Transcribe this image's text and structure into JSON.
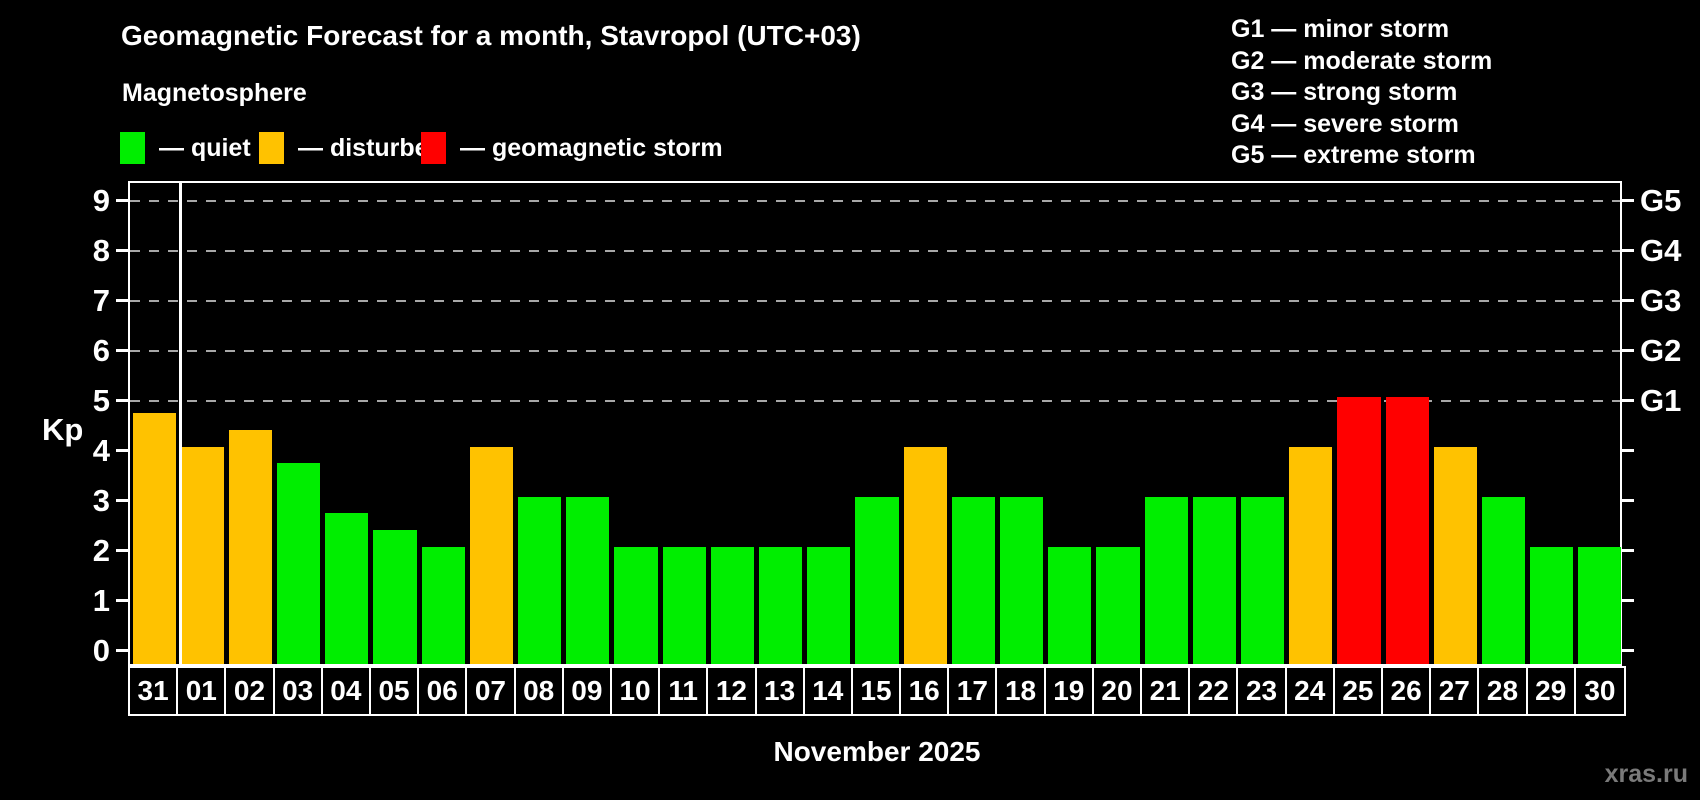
{
  "header": {
    "title": "Geomagnetic Forecast for a month, Stavropol (UTC+03)",
    "subtitle": "Magnetosphere"
  },
  "legend": {
    "items": [
      {
        "name": "quiet",
        "label": "— quiet",
        "color": "#00ee00"
      },
      {
        "name": "disturbed",
        "label": "— disturbed",
        "color": "#ffc200"
      },
      {
        "name": "storm",
        "label": "— geomagnetic storm",
        "color": "#ff0000"
      }
    ]
  },
  "g_scale_legend": [
    "G1 — minor storm",
    "G2 — moderate storm",
    "G3 — strong storm",
    "G4 — severe storm",
    "G5 — extreme storm"
  ],
  "status_colors": {
    "quiet": "#00ee00",
    "disturbed": "#ffc200",
    "storm": "#ff0000"
  },
  "colors": {
    "background": "#000000",
    "axis": "#ffffff",
    "gridline": "#a8a8a8",
    "text": "#ffffff",
    "watermark": "#7a7a7a"
  },
  "watermark": "xras.ru",
  "chart_data": {
    "type": "bar",
    "title": "Geomagnetic Forecast for a month, Stavropol (UTC+03)",
    "xlabel": "November 2025",
    "ylabel": "Kp",
    "ylim": [
      -0.35,
      9.35
    ],
    "yticks": [
      0,
      1,
      2,
      3,
      4,
      5,
      6,
      7,
      8,
      9
    ],
    "gridlines_at": [
      5,
      6,
      7,
      8,
      9
    ],
    "grid": "dashed-horizontal",
    "legend_position": "top-left",
    "right_axis_labels": [
      {
        "kp": 5,
        "label": "G1"
      },
      {
        "kp": 6,
        "label": "G2"
      },
      {
        "kp": 7,
        "label": "G3"
      },
      {
        "kp": 8,
        "label": "G4"
      },
      {
        "kp": 9,
        "label": "G5"
      }
    ],
    "categories": [
      "31",
      "01",
      "02",
      "03",
      "04",
      "05",
      "06",
      "07",
      "08",
      "09",
      "10",
      "11",
      "12",
      "13",
      "14",
      "15",
      "16",
      "17",
      "18",
      "19",
      "20",
      "21",
      "22",
      "23",
      "24",
      "25",
      "26",
      "27",
      "28",
      "29",
      "30"
    ],
    "values": [
      4.67,
      4,
      4.33,
      3.67,
      2.67,
      2.33,
      2,
      4,
      3,
      3,
      2,
      2,
      2,
      2,
      2,
      3,
      4,
      3,
      3,
      2,
      2,
      3,
      3,
      3,
      4,
      5,
      5,
      4,
      3,
      2,
      2
    ],
    "statuses": [
      "disturbed",
      "disturbed",
      "disturbed",
      "quiet",
      "quiet",
      "quiet",
      "quiet",
      "disturbed",
      "quiet",
      "quiet",
      "quiet",
      "quiet",
      "quiet",
      "quiet",
      "quiet",
      "quiet",
      "disturbed",
      "quiet",
      "quiet",
      "quiet",
      "quiet",
      "quiet",
      "quiet",
      "quiet",
      "disturbed",
      "storm",
      "storm",
      "disturbed",
      "quiet",
      "quiet",
      "quiet"
    ],
    "month_separator_before_index": 1
  }
}
